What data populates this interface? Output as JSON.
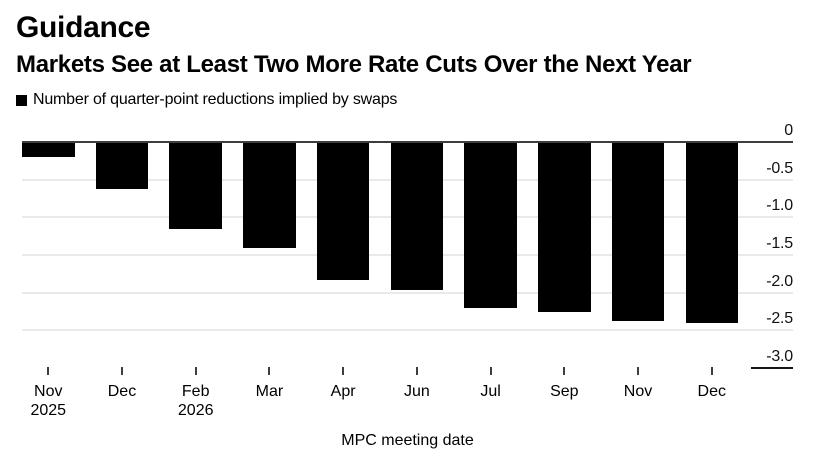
{
  "header": {
    "title": "Guidance",
    "subtitle": "Markets See at Least Two More Rate Cuts Over the Next Year"
  },
  "legend": {
    "label": "Number of quarter-point reductions implied by swaps",
    "swatch_color": "#000000"
  },
  "chart_data": {
    "type": "bar",
    "title": "Guidance",
    "subtitle": "Markets See at Least Two More Rate Cuts Over the Next Year",
    "series_name": "Number of quarter-point reductions implied by swaps",
    "categories": [
      "Nov 2025",
      "Dec 2025",
      "Feb 2026",
      "Mar 2026",
      "Apr 2026",
      "Jun 2026",
      "Jul 2026",
      "Sep 2026",
      "Nov 2026",
      "Dec 2026"
    ],
    "x_tick_labels": [
      {
        "month": "Nov",
        "year": "2025"
      },
      {
        "month": "Dec",
        "year": ""
      },
      {
        "month": "Feb",
        "year": "2026"
      },
      {
        "month": "Mar",
        "year": ""
      },
      {
        "month": "Apr",
        "year": ""
      },
      {
        "month": "Jun",
        "year": ""
      },
      {
        "month": "Jul",
        "year": ""
      },
      {
        "month": "Sep",
        "year": ""
      },
      {
        "month": "Nov",
        "year": ""
      },
      {
        "month": "Dec",
        "year": ""
      }
    ],
    "values": [
      -0.2,
      -0.62,
      -1.15,
      -1.4,
      -1.83,
      -1.96,
      -2.2,
      -2.26,
      -2.38,
      -2.4
    ],
    "xlabel": "MPC meeting date",
    "ylabel": "",
    "ylim": [
      -3.0,
      0
    ],
    "y_ticks": [
      0,
      -0.5,
      -1.0,
      -1.5,
      -2.0,
      -2.5,
      -3.0
    ],
    "y_tick_labels": [
      "0",
      "-0.5",
      "-1.0",
      "-1.5",
      "-2.0",
      "-2.5",
      "-3.0"
    ],
    "grid": true,
    "legend_position": "top-left",
    "value_axis_side": "right",
    "bar_color": "#000000",
    "zero_line_color": "#3d3d3d",
    "gridline_color": "#e9e9e9"
  }
}
